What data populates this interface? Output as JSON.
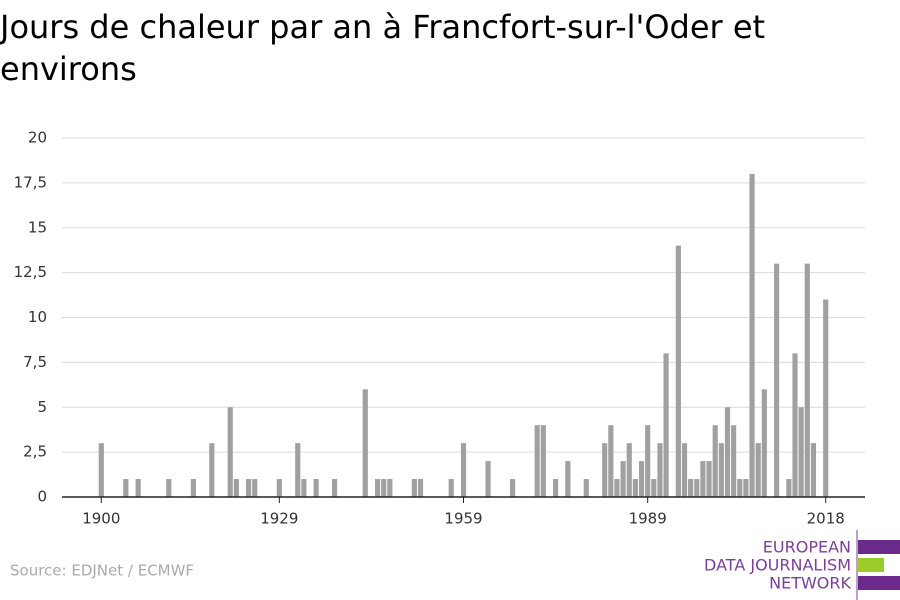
{
  "chart_data": {
    "type": "bar",
    "title": "Jours de chaleur par an à Francfort-sur-l'Oder et environs",
    "source": "Source: EDJNet / ECMWF",
    "branding": [
      "EUROPEAN",
      "DATA JOURNALISM",
      "NETWORK"
    ],
    "color": "#a0a0a0",
    "x": [
      1900,
      1901,
      1902,
      1903,
      1904,
      1905,
      1906,
      1907,
      1908,
      1909,
      1910,
      1911,
      1912,
      1913,
      1914,
      1915,
      1916,
      1917,
      1918,
      1919,
      1920,
      1921,
      1922,
      1923,
      1924,
      1925,
      1926,
      1927,
      1928,
      1929,
      1930,
      1931,
      1932,
      1933,
      1934,
      1935,
      1936,
      1937,
      1938,
      1939,
      1940,
      1941,
      1942,
      1943,
      1944,
      1945,
      1946,
      1947,
      1948,
      1949,
      1950,
      1951,
      1952,
      1953,
      1954,
      1955,
      1956,
      1957,
      1958,
      1959,
      1960,
      1961,
      1962,
      1963,
      1964,
      1965,
      1966,
      1967,
      1968,
      1969,
      1970,
      1971,
      1972,
      1973,
      1974,
      1975,
      1976,
      1977,
      1978,
      1979,
      1980,
      1981,
      1982,
      1983,
      1984,
      1985,
      1986,
      1987,
      1988,
      1989,
      1990,
      1991,
      1992,
      1993,
      1994,
      1995,
      1996,
      1997,
      1998,
      1999,
      2000,
      2001,
      2002,
      2003,
      2004,
      2005,
      2006,
      2007,
      2008,
      2009,
      2010,
      2011,
      2012,
      2013,
      2014,
      2015,
      2016,
      2017,
      2018
    ],
    "values": [
      3,
      0,
      0,
      0,
      1,
      0,
      1,
      0,
      0,
      0,
      0,
      1,
      0,
      0,
      0,
      1,
      0,
      0,
      3,
      0,
      0,
      5,
      1,
      0,
      1,
      1,
      0,
      0,
      0,
      1,
      0,
      0,
      3,
      1,
      0,
      1,
      0,
      0,
      1,
      0,
      0,
      0,
      0,
      6,
      0,
      1,
      1,
      1,
      0,
      0,
      0,
      1,
      1,
      0,
      0,
      0,
      0,
      1,
      0,
      3,
      0,
      0,
      0,
      2,
      0,
      0,
      0,
      1,
      0,
      0,
      0,
      4,
      4,
      0,
      1,
      0,
      2,
      0,
      0,
      1,
      0,
      0,
      3,
      4,
      1,
      2,
      3,
      1,
      2,
      4,
      1,
      3,
      8,
      0,
      14,
      3,
      1,
      1,
      2,
      2,
      4,
      3,
      5,
      4,
      1,
      1,
      18,
      3,
      6,
      0,
      13,
      0,
      1,
      8,
      5,
      13,
      3,
      0,
      11
    ],
    "xlim": [
      1893.6,
      2024.4
    ],
    "xticks": [
      1900,
      1929,
      1959,
      1989,
      2018
    ],
    "ylim": [
      0,
      20
    ],
    "yticks": [
      0,
      {
        "value": 2.5,
        "label": "2,5"
      },
      5,
      {
        "value": 7.5,
        "label": "7,5"
      },
      10,
      {
        "value": 12.5,
        "label": "12,5"
      },
      15,
      {
        "value": 17.5,
        "label": "17,5"
      },
      20
    ],
    "grid": true
  }
}
